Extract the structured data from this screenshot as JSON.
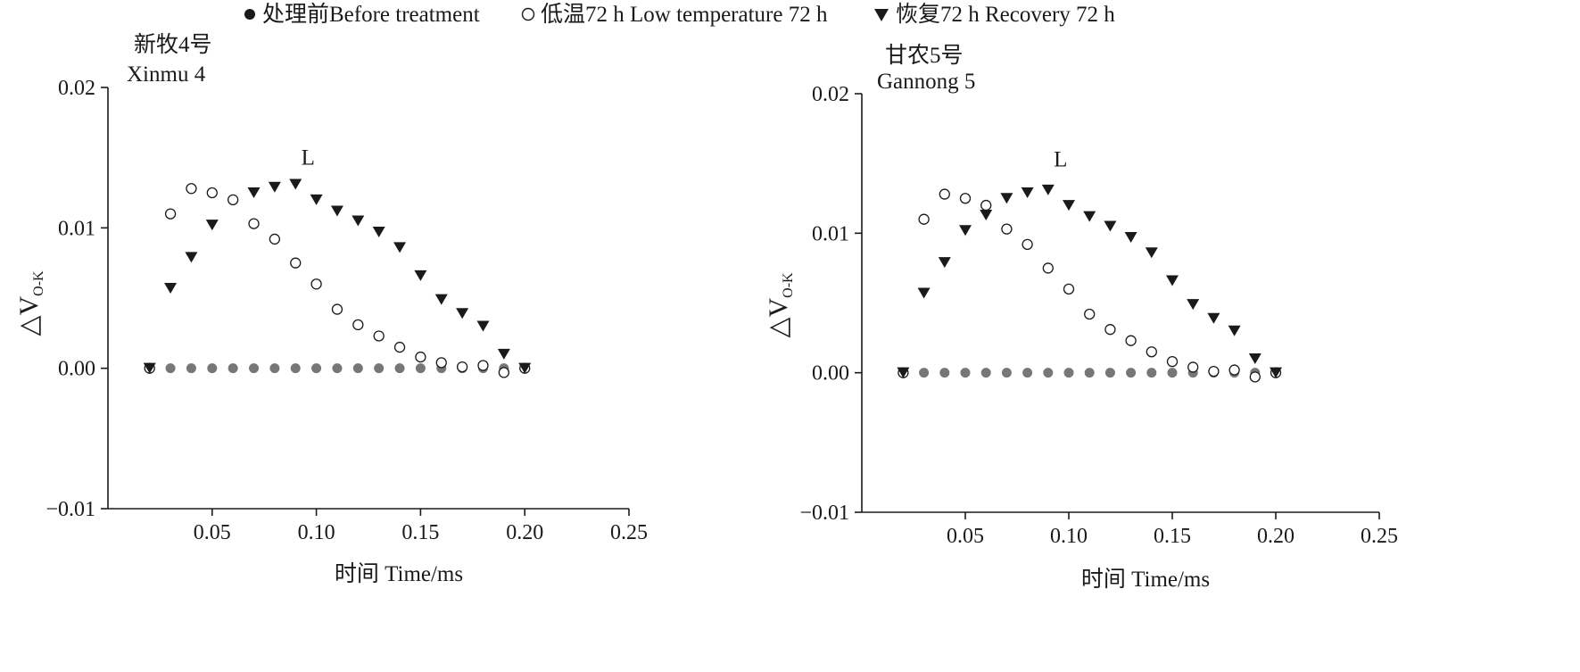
{
  "legend": {
    "items": [
      {
        "marker": "filled-circle",
        "label": "处理前Before treatment",
        "color": "#1a1a1a"
      },
      {
        "marker": "open-circle",
        "label": "低温72 h Low temperature 72 h",
        "color": "#1a1a1a"
      },
      {
        "marker": "filled-triangle-down",
        "label": "恢复72 h Recovery 72 h",
        "color": "#1a1a1a"
      }
    ]
  },
  "chart_data": [
    {
      "type": "scatter",
      "title_zh": "新牧4号",
      "title_en": "Xinmu 4",
      "ylabel_prefix": "△V",
      "ylabel_sub": "O-K",
      "xlabel": "时间 Time/ms",
      "xlim": [
        0,
        0.25
      ],
      "ylim": [
        -0.01,
        0.02
      ],
      "xticks": [
        0.05,
        0.1,
        0.15,
        0.2,
        0.25
      ],
      "xtick_labels": [
        "0.05",
        "0.10",
        "0.15",
        "0.20",
        "0.25"
      ],
      "yticks": [
        -0.01,
        0.0,
        0.01,
        0.02
      ],
      "ytick_labels": [
        "−0.01",
        "0.00",
        "0.01",
        "0.02"
      ],
      "annotation": {
        "text": "L",
        "x": 0.09,
        "y": 0.0145
      },
      "x": [
        0.02,
        0.03,
        0.04,
        0.05,
        0.06,
        0.07,
        0.08,
        0.09,
        0.1,
        0.11,
        0.12,
        0.13,
        0.14,
        0.15,
        0.16,
        0.17,
        0.18,
        0.19,
        0.2
      ],
      "series": [
        {
          "name": "处理前Before treatment",
          "marker": "filled-circle",
          "color": "#777777",
          "values": [
            0,
            0,
            0,
            0,
            0,
            0,
            0,
            0,
            0,
            0,
            0,
            0,
            0,
            0,
            0,
            0,
            0,
            0,
            0
          ]
        },
        {
          "name": "低温72 h Low temperature 72 h",
          "marker": "open-circle",
          "color": "#1a1a1a",
          "values": [
            0,
            0.011,
            0.0128,
            0.0125,
            0.012,
            0.0103,
            0.0092,
            0.0075,
            0.006,
            0.0042,
            0.0031,
            0.0023,
            0.0015,
            0.0008,
            0.0004,
            0.0001,
            0.0002,
            -0.0003,
            0
          ]
        },
        {
          "name": "恢复72 h Recovery 72 h",
          "marker": "filled-triangle-down",
          "color": "#1a1a1a",
          "values": [
            0,
            0.0057,
            0.0079,
            0.0102,
            null,
            0.0125,
            0.0129,
            0.0131,
            0.012,
            0.0112,
            0.0105,
            0.0097,
            0.0086,
            0.0066,
            0.0049,
            0.0039,
            0.003,
            0.001,
            0
          ]
        }
      ]
    },
    {
      "type": "scatter",
      "title_zh": "甘农5号",
      "title_en": "Gannong 5",
      "ylabel_prefix": "△V",
      "ylabel_sub": "O-K",
      "xlabel": "时间 Time/ms",
      "xlim": [
        0,
        0.25
      ],
      "ylim": [
        -0.01,
        0.02
      ],
      "xticks": [
        0.05,
        0.1,
        0.15,
        0.2,
        0.25
      ],
      "xtick_labels": [
        "0.05",
        "0.10",
        "0.15",
        "0.20",
        "0.25"
      ],
      "yticks": [
        -0.01,
        0.0,
        0.01,
        0.02
      ],
      "ytick_labels": [
        "−0.01",
        "0.00",
        "0.01",
        "0.02"
      ],
      "annotation": {
        "text": "L",
        "x": 0.09,
        "y": 0.0148
      },
      "x": [
        0.02,
        0.03,
        0.04,
        0.05,
        0.06,
        0.07,
        0.08,
        0.09,
        0.1,
        0.11,
        0.12,
        0.13,
        0.14,
        0.15,
        0.16,
        0.17,
        0.18,
        0.19,
        0.2
      ],
      "series": [
        {
          "name": "处理前Before treatment",
          "marker": "filled-circle",
          "color": "#777777",
          "values": [
            0,
            0,
            0,
            0,
            0,
            0,
            0,
            0,
            0,
            0,
            0,
            0,
            0,
            0,
            0,
            0,
            0,
            0,
            0
          ]
        },
        {
          "name": "低温72 h Low temperature 72 h",
          "marker": "open-circle",
          "color": "#1a1a1a",
          "values": [
            0,
            0.011,
            0.0128,
            0.0125,
            0.012,
            0.0103,
            0.0092,
            0.0075,
            0.006,
            0.0042,
            0.0031,
            0.0023,
            0.0015,
            0.0008,
            0.0004,
            0.0001,
            0.0002,
            -0.0003,
            0
          ]
        },
        {
          "name": "恢复72 h Recovery 72 h",
          "marker": "filled-triangle-down",
          "color": "#1a1a1a",
          "values": [
            0,
            0.0057,
            0.0079,
            0.0102,
            0.0113,
            0.0125,
            0.0129,
            0.0131,
            0.012,
            0.0112,
            0.0105,
            0.0097,
            0.0086,
            0.0066,
            0.0049,
            0.0039,
            0.003,
            0.001,
            0
          ]
        }
      ]
    }
  ]
}
